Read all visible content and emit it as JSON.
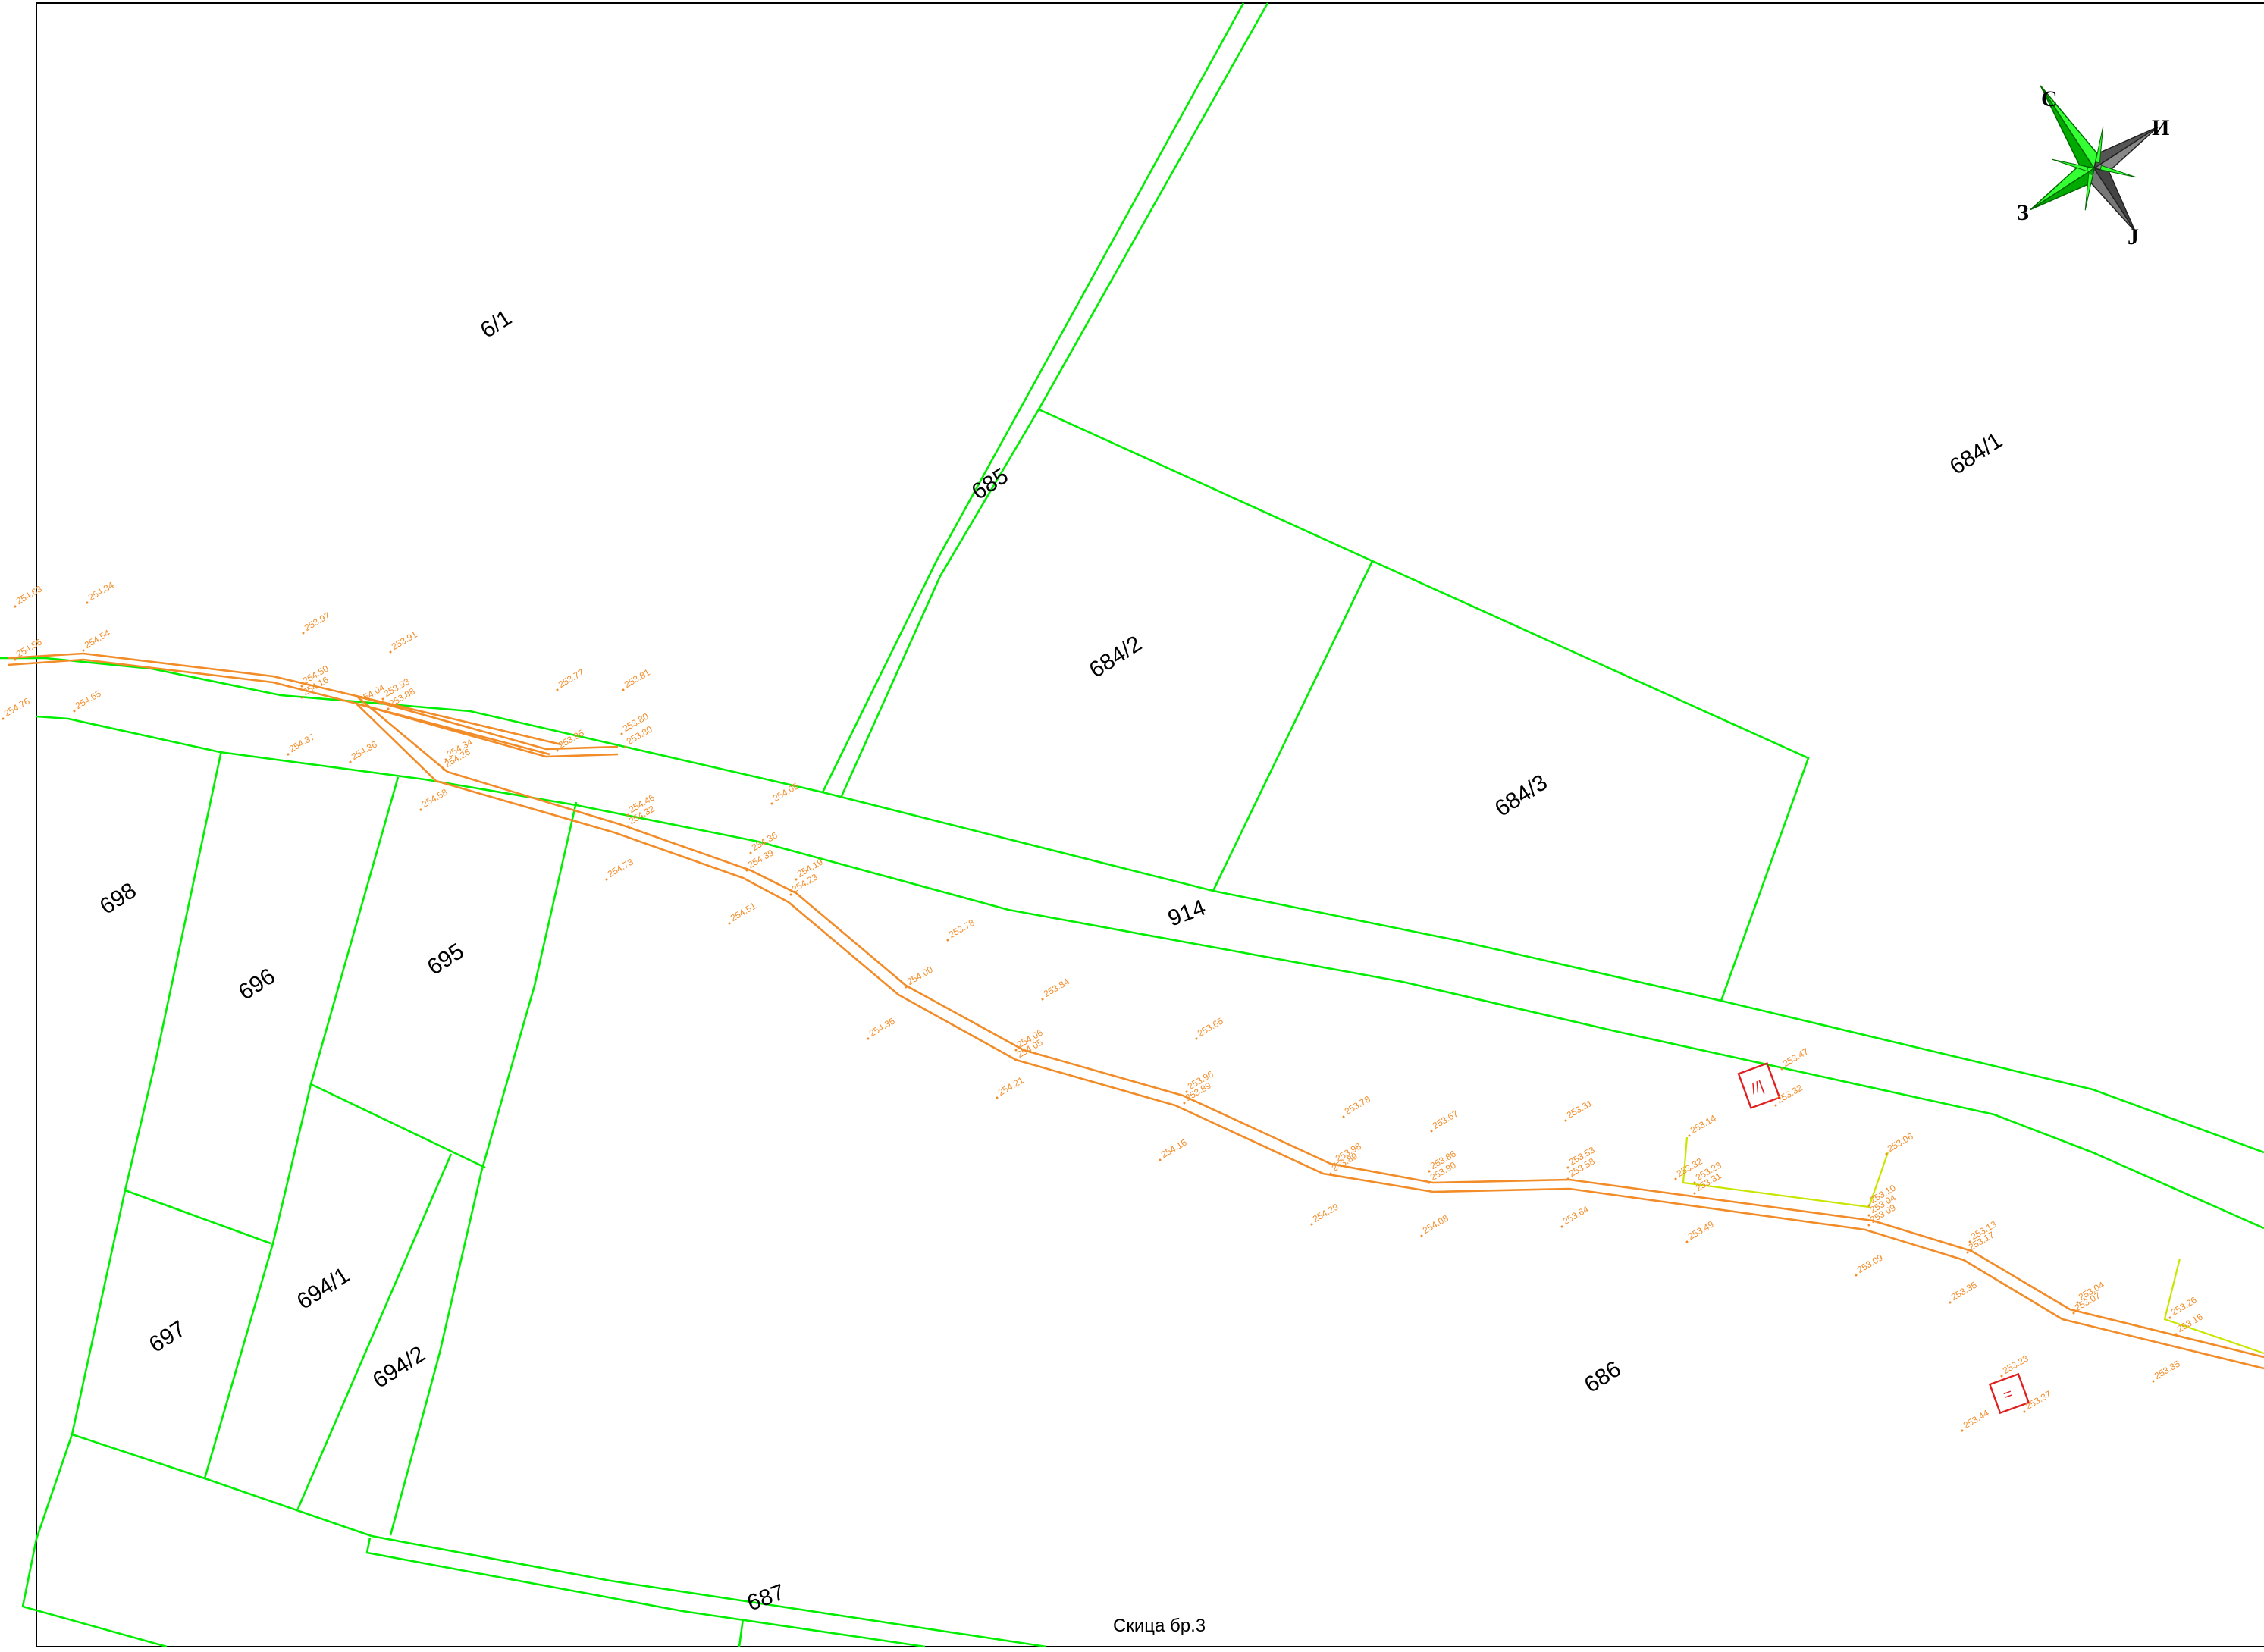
{
  "map": {
    "caption": "Скица бр.3",
    "colors": {
      "parcel_boundary": "#00ee00",
      "road_axis": "#f28c28",
      "elevation_text": "#f28c28",
      "marker": "#e02020",
      "auxiliary_line": "#c8e600",
      "frame": "#000000"
    },
    "compass": {
      "icon": "compass-rose-icon",
      "north": "С",
      "east": "И",
      "south": "Ј",
      "west": "З"
    },
    "parcels": [
      "6/1",
      "685",
      "684/1",
      "684/2",
      "684/3",
      "914",
      "698",
      "696",
      "695",
      "697",
      "694/1",
      "694/2",
      "686",
      "687"
    ],
    "elevations": [
      "254.63",
      "254.34",
      "254.54",
      "254.56",
      "254.65",
      "254.76",
      "253.97",
      "253.91",
      "254.50",
      "254.16",
      "254.04",
      "253.93",
      "253.88",
      "253.77",
      "253.81",
      "253.95",
      "253.80",
      "253.80",
      "254.37",
      "254.36",
      "254.34",
      "254.26",
      "254.58",
      "254.05",
      "254.46",
      "254.32",
      "254.73",
      "254.36",
      "254.39",
      "254.19",
      "254.23",
      "254.51",
      "253.78",
      "254.00",
      "253.84",
      "254.35",
      "254.06",
      "254.05",
      "254.21",
      "253.65",
      "253.96",
      "253.89",
      "254.16",
      "253.78",
      "253.67",
      "253.31",
      "253.98",
      "253.89",
      "254.29",
      "253.86",
      "253.90",
      "254.08",
      "253.53",
      "253.58",
      "253.64",
      "253.14",
      "253.32",
      "253.23",
      "253.31",
      "253.49",
      "253.47",
      "253.32",
      "253.06",
      "253.10",
      "253.04",
      "253.09",
      "253.09",
      "253.13",
      "253.17",
      "253.35",
      "253.04",
      "253.07",
      "253.23",
      "253.37",
      "253.44",
      "253.26",
      "253.16",
      "253.35"
    ]
  }
}
